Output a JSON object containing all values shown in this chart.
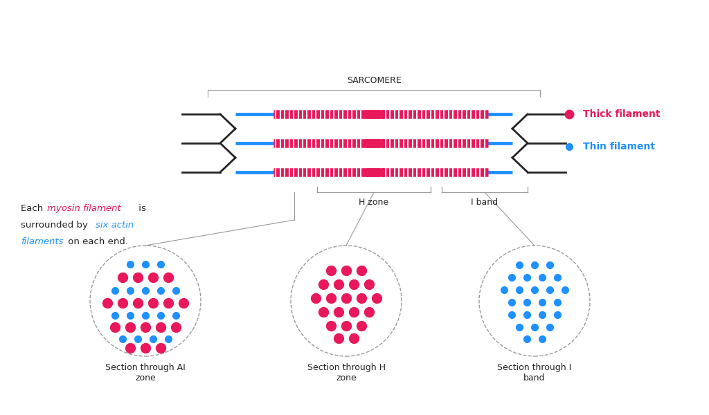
{
  "bg_color": "#ffffff",
  "thick_color": "#E8185A",
  "thin_color": "#1E90FF",
  "dark_color": "#222222",
  "gray_color": "#999999",
  "sarcomere_label": "SARCOMERE",
  "h_zone_label": "H zone",
  "i_band_label": "I band",
  "legend_thick": "Thick filament",
  "legend_thin": "Thin filament",
  "section_ai": "Section through AI\nzone",
  "section_h": "Section through H\nzone",
  "section_i": "Section through I\nband"
}
